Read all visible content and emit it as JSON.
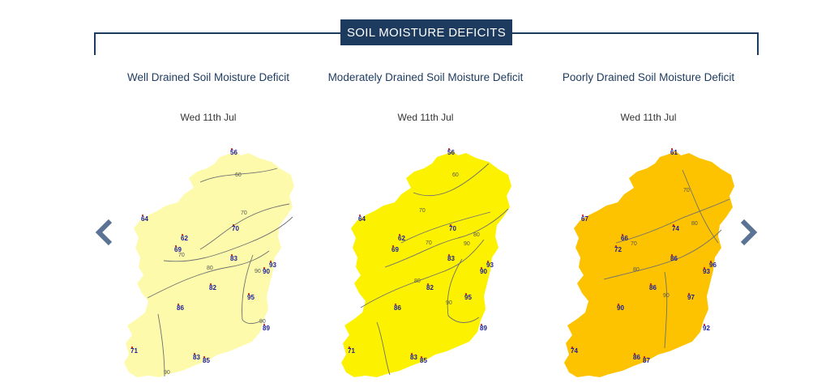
{
  "section": {
    "title": "SOIL MOISTURE DEFICITS"
  },
  "colors": {
    "navy": "#1d3a5f",
    "arrow": "#5a7394",
    "well": "#fdfbab",
    "moderate": "#fcf200",
    "poor": "#fdc300",
    "station": "#1a1a9a"
  },
  "nav": {
    "prev_icon": "chevron-left-icon",
    "next_icon": "chevron-right-icon"
  },
  "panels": [
    {
      "title": "Well Drained Soil Moisture Deficit",
      "date": "Wed 11th Jul",
      "contours": [
        "60",
        "70",
        "70",
        "80",
        "90",
        "90",
        "90"
      ],
      "stations": [
        "56",
        "64",
        "62",
        "69",
        "70",
        "83",
        "93",
        "90",
        "82",
        "95",
        "86",
        "89",
        "71",
        "83",
        "85"
      ]
    },
    {
      "title": "Moderately Drained Soil Moisture Deficit",
      "date": "Wed 11th Jul",
      "contours": [
        "60",
        "70",
        "70",
        "80",
        "80",
        "90",
        "90"
      ],
      "stations": [
        "56",
        "64",
        "62",
        "69",
        "70",
        "83",
        "93",
        "90",
        "82",
        "95",
        "86",
        "89",
        "71",
        "83",
        "85"
      ]
    },
    {
      "title": "Poorly Drained Soil Moisture Deficit",
      "date": "Wed 11th Jul",
      "contours": [
        "70",
        "80",
        "70",
        "80",
        "90"
      ],
      "stations": [
        "61",
        "67",
        "66",
        "72",
        "74",
        "86",
        "96",
        "93",
        "86",
        "97",
        "90",
        "92",
        "74",
        "86",
        "87"
      ]
    }
  ]
}
